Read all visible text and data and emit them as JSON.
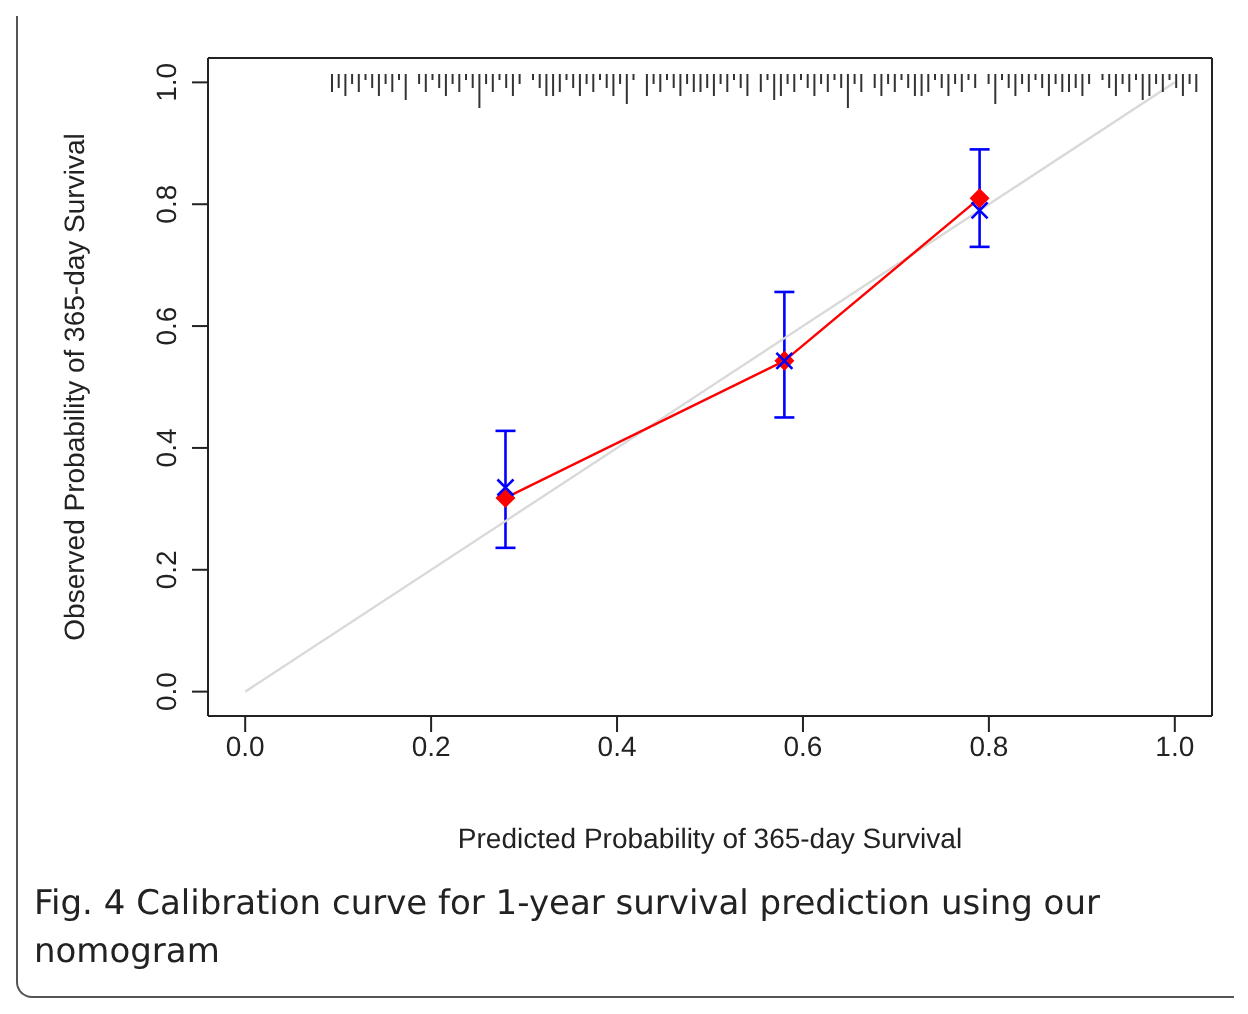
{
  "chart_data": {
    "type": "line",
    "xlabel": "Predicted Probability of 365-day Survival",
    "ylabel": "Observed Probability of 365-day Survival",
    "annotations": [
      "Fig. 4  Calibration curve for 1-year survival prediction using our nomogram"
    ],
    "xlim": [
      -0.04,
      1.04
    ],
    "ylim": [
      -0.04,
      1.04
    ],
    "xticks": [
      {
        "value": 0,
        "label": "0.0"
      },
      0.2,
      0.4,
      0.6,
      0.8,
      {
        "value": 1,
        "label": "1.0"
      }
    ],
    "yticks": [
      {
        "value": 0,
        "label": "0.0"
      },
      0.2,
      0.4,
      0.6,
      0.8,
      {
        "value": 1,
        "label": "1.0"
      }
    ],
    "series": [
      {
        "color": "#d9d9d9",
        "x": [
          0,
          1
        ],
        "values": [
          0,
          1
        ],
        "marker": "none"
      },
      {
        "color": "#ff0000",
        "x": [
          0.28,
          0.58,
          0.79
        ],
        "values": [
          0.318,
          0.543,
          0.81
        ],
        "marker": "diamond"
      },
      {
        "type": "scatter",
        "color": "#0000ff",
        "x": [
          0.28,
          0.58,
          0.79
        ],
        "values": [
          0.335,
          0.543,
          0.79
        ],
        "marker": "cross",
        "errors": [
          [
            0.236,
            0.428
          ],
          [
            0.45,
            0.656
          ],
          [
            0.73,
            0.89
          ]
        ]
      }
    ]
  }
}
